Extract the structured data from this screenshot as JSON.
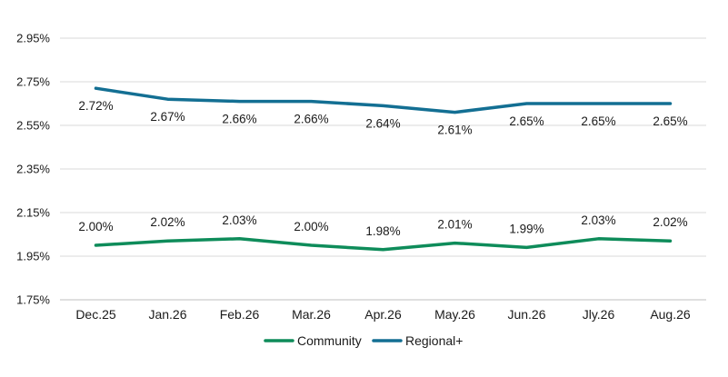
{
  "chart_data": {
    "type": "line",
    "categories": [
      "Dec.25",
      "Jan.26",
      "Feb.26",
      "Mar.26",
      "Apr.26",
      "May.26",
      "Jun.26",
      "Jly.26",
      "Aug.26"
    ],
    "series": [
      {
        "name": "Community",
        "color": "#0e8c5a",
        "values": [
          2.0,
          2.02,
          2.03,
          2.0,
          1.98,
          2.01,
          1.99,
          2.03,
          2.02
        ],
        "labels": [
          "2.00%",
          "2.02%",
          "2.03%",
          "2.00%",
          "1.98%",
          "2.01%",
          "1.99%",
          "2.03%",
          "2.02%"
        ]
      },
      {
        "name": "Regional+",
        "color": "#136f93",
        "values": [
          2.72,
          2.67,
          2.66,
          2.66,
          2.64,
          2.61,
          2.65,
          2.65,
          2.65
        ],
        "labels": [
          "2.72%",
          "2.67%",
          "2.66%",
          "2.66%",
          "2.64%",
          "2.61%",
          "2.65%",
          "2.65%",
          "2.65%"
        ]
      }
    ],
    "ylim": [
      1.75,
      2.95
    ],
    "yticks": [
      1.75,
      1.95,
      2.15,
      2.35,
      2.55,
      2.75,
      2.95
    ],
    "ytick_labels": [
      "1.75%",
      "1.95%",
      "2.15%",
      "2.35%",
      "2.55%",
      "2.75%",
      "2.95%"
    ],
    "grid": true,
    "legend": "bottom",
    "title": "",
    "xlabel": "",
    "ylabel": ""
  }
}
